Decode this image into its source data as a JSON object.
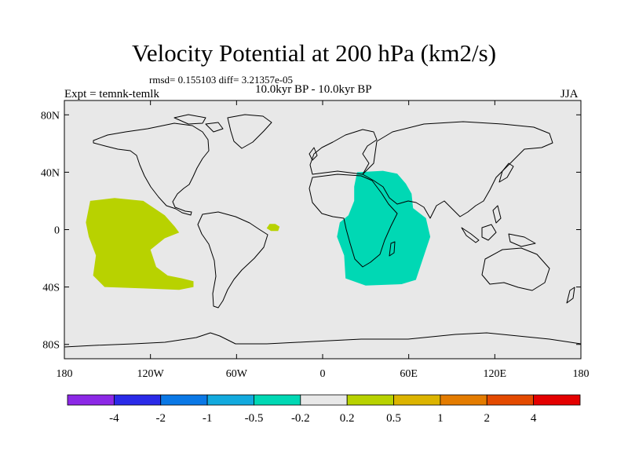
{
  "title": "Velocity Potential at 200 hPa (km2/s)",
  "stats": "rmsd= 0.155103 diff= 3.21357e-05",
  "left_label": "Expt = temnk-temlk",
  "center_label": "10.0kyr BP - 10.0kyr BP",
  "right_label": "JJA",
  "map": {
    "projection": "cylindrical equidistant",
    "lon_range": [
      -180,
      180
    ],
    "lat_range": [
      -90,
      90
    ],
    "background_color": "#e8e8e8",
    "x_ticks": [
      {
        "lon": -180,
        "label": "180"
      },
      {
        "lon": -120,
        "label": "120W"
      },
      {
        "lon": -60,
        "label": "60W"
      },
      {
        "lon": 0,
        "label": "0"
      },
      {
        "lon": 60,
        "label": "60E"
      },
      {
        "lon": 120,
        "label": "120E"
      },
      {
        "lon": 180,
        "label": "180"
      }
    ],
    "y_ticks": [
      {
        "lat": 80,
        "label": "80N"
      },
      {
        "lat": 40,
        "label": "40N"
      },
      {
        "lat": 0,
        "label": "0"
      },
      {
        "lat": -40,
        "label": "40S"
      },
      {
        "lat": -80,
        "label": "80S"
      }
    ],
    "shaded_regions": [
      {
        "name": "eastern Pacific",
        "level": "0.2 to 0.5",
        "color": "#b8d200",
        "outline": [
          [
            -162,
            20
          ],
          [
            -145,
            22
          ],
          [
            -125,
            20
          ],
          [
            -110,
            10
          ],
          [
            -103,
            2
          ],
          [
            -100,
            -2
          ],
          [
            -110,
            -6
          ],
          [
            -120,
            -14
          ],
          [
            -116,
            -26
          ],
          [
            -108,
            -32
          ],
          [
            -98,
            -34
          ],
          [
            -90,
            -36
          ],
          [
            -90,
            -40
          ],
          [
            -100,
            -42
          ],
          [
            -125,
            -41
          ],
          [
            -152,
            -40
          ],
          [
            -160,
            -32
          ],
          [
            -158,
            -18
          ],
          [
            -163,
            -5
          ],
          [
            -165,
            5
          ]
        ]
      },
      {
        "name": "tropical Atlantic",
        "level": "0.2 to 0.5",
        "color": "#b8d200",
        "outline": [
          [
            -37,
            4
          ],
          [
            -33,
            4
          ],
          [
            -30,
            2
          ],
          [
            -31,
            -1
          ],
          [
            -36,
            -1
          ],
          [
            -39,
            1
          ]
        ]
      },
      {
        "name": "Indian Ocean",
        "level": "-0.5 to -0.2",
        "color": "#00d8b4",
        "outline": [
          [
            24,
            40
          ],
          [
            42,
            41
          ],
          [
            52,
            39
          ],
          [
            58,
            32
          ],
          [
            62,
            25
          ],
          [
            63,
            15
          ],
          [
            72,
            8
          ],
          [
            75,
            -5
          ],
          [
            70,
            -20
          ],
          [
            65,
            -35
          ],
          [
            55,
            -38
          ],
          [
            30,
            -39
          ],
          [
            16,
            -34
          ],
          [
            15,
            -18
          ],
          [
            10,
            -5
          ],
          [
            12,
            5
          ],
          [
            18,
            10
          ],
          [
            22,
            20
          ],
          [
            22,
            30
          ]
        ]
      }
    ]
  },
  "colorbar": {
    "labels": [
      "-4",
      "-2",
      "-1",
      "-0.5",
      "-0.2",
      "0.2",
      "0.5",
      "1",
      "2",
      "4"
    ],
    "colors": [
      "#8c28e6",
      "#2a2ae8",
      "#0a78e6",
      "#12aade",
      "#00d8b4",
      "#e8e8e8",
      "#b8d200",
      "#dcb400",
      "#e47c00",
      "#e44a00",
      "#e40000"
    ]
  }
}
